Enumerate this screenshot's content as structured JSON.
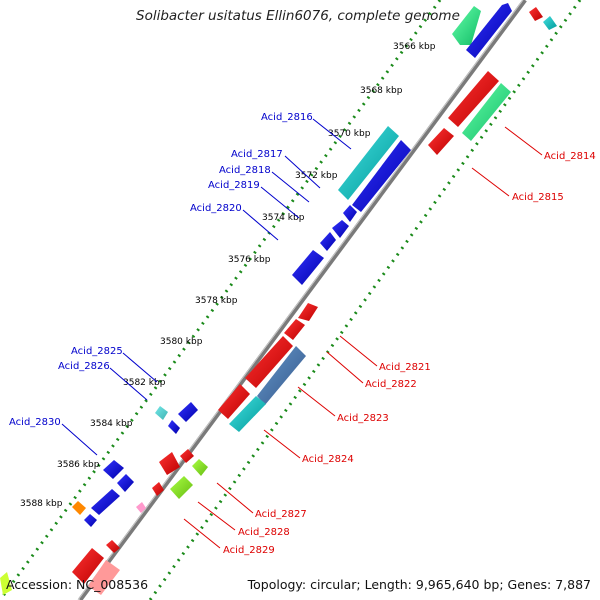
{
  "title": "Solibacter usitatus Ellin6076, complete genome",
  "footer": {
    "accession": "Accession: NC_008536",
    "summary": "Topology: circular; Length: 9,965,640 bp; Genes: 7,887"
  },
  "colors": {
    "forward_label": "#0000cc",
    "reverse_label": "#dd0000",
    "backbone": "#808080",
    "ticks": "#1a8a1a"
  },
  "kbp_labels": [
    {
      "name": "kbp-3566",
      "text": "3566 kbp"
    },
    {
      "name": "kbp-3568",
      "text": "3568 kbp"
    },
    {
      "name": "kbp-3570",
      "text": "3570 kbp"
    },
    {
      "name": "kbp-3572",
      "text": "3572 kbp"
    },
    {
      "name": "kbp-3574",
      "text": "3574 kbp"
    },
    {
      "name": "kbp-3576",
      "text": "3576 kbp"
    },
    {
      "name": "kbp-3578",
      "text": "3578 kbp"
    },
    {
      "name": "kbp-3580",
      "text": "3580 kbp"
    },
    {
      "name": "kbp-3582",
      "text": "3582 kbp"
    },
    {
      "name": "kbp-3584",
      "text": "3584 kbp"
    },
    {
      "name": "kbp-3586",
      "text": "3586 kbp"
    },
    {
      "name": "kbp-3588",
      "text": "3588 kbp"
    }
  ],
  "forward_genes": [
    {
      "name": "Acid_2816",
      "color": "#00cccc"
    },
    {
      "name": "Acid_2817",
      "color": "#0000dd"
    },
    {
      "name": "Acid_2818",
      "color": "#0000dd"
    },
    {
      "name": "Acid_2819",
      "color": "#0000dd"
    },
    {
      "name": "Acid_2820",
      "color": "#0000dd"
    },
    {
      "name": "Acid_2825",
      "color": "#66cccc"
    },
    {
      "name": "Acid_2826",
      "color": "#0000dd"
    },
    {
      "name": "Acid_2830",
      "color": "#0000dd"
    }
  ],
  "reverse_genes": [
    {
      "name": "Acid_2814",
      "color": "#22dd88"
    },
    {
      "name": "Acid_2815",
      "color": "#ee0000"
    },
    {
      "name": "Acid_2821",
      "color": "#ee0000"
    },
    {
      "name": "Acid_2822",
      "color": "#ee0000"
    },
    {
      "name": "Acid_2823",
      "color": "#4477aa"
    },
    {
      "name": "Acid_2824",
      "color": "#00cccc"
    },
    {
      "name": "Acid_2827",
      "color": "#ee0000"
    },
    {
      "name": "Acid_2828",
      "color": "#88dd22"
    },
    {
      "name": "Acid_2829",
      "color": "#88dd22"
    }
  ]
}
